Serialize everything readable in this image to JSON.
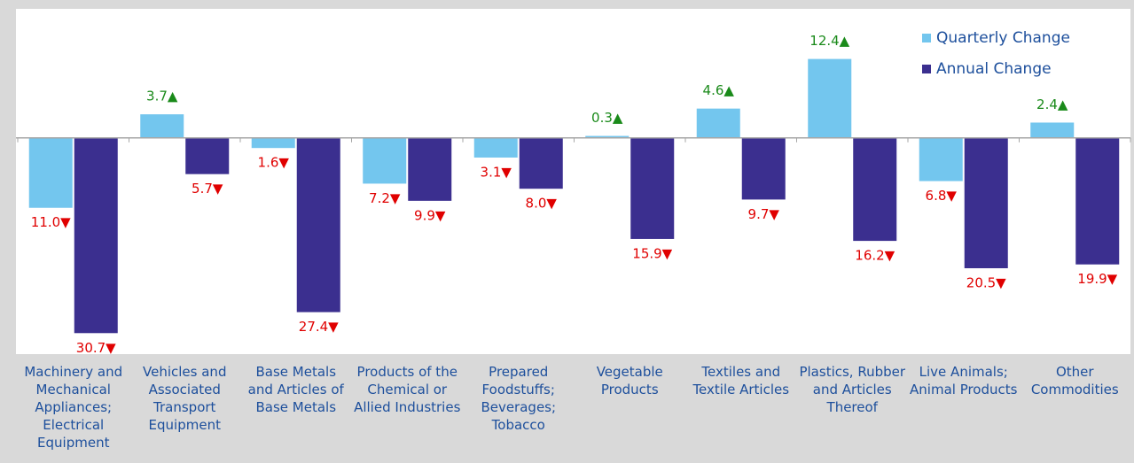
{
  "chart_data": {
    "type": "bar",
    "categories": [
      "Machinery and Mechanical Appliances; Electrical Equipment",
      "Vehicles and Associated Transport Equipment",
      "Base Metals and Articles of Base Metals",
      "Products of the Chemical or Allied Industries",
      "Prepared Foodstuffs; Beverages; Tobacco",
      "Vegetable Products",
      "Textiles and Textile Articles",
      "Plastics, Rubber and Articles Thereof",
      "Live Animals; Animal Products",
      "Other Commodities"
    ],
    "series": [
      {
        "name": "Quarterly Change",
        "color": "#73c6ee",
        "values": [
          -11.0,
          3.7,
          -1.6,
          -7.2,
          -3.1,
          0.3,
          4.6,
          12.4,
          -6.8,
          2.4
        ],
        "value_labels": [
          "11.0▼",
          "3.7▲",
          "1.6▼",
          "7.2▼",
          "3.1▼",
          "0.3▲",
          "4.6▲",
          "12.4▲",
          "6.8▼",
          "2.4▲"
        ]
      },
      {
        "name": "Annual Change",
        "color": "#3b2f8f",
        "values": [
          -30.7,
          -5.7,
          -27.4,
          -9.9,
          -8.0,
          -15.9,
          -9.7,
          -16.2,
          -20.5,
          -19.9
        ],
        "value_labels": [
          "30.7▼",
          "5.7▼",
          "27.4▼",
          "9.9▼",
          "8.0▼",
          "15.9▼",
          "9.7▼",
          "16.2▼",
          "20.5▼",
          "19.9▼"
        ]
      }
    ],
    "positive_label_color": "#1a8a1a",
    "negative_label_color": "#e00000",
    "ylim": [
      -34,
      20
    ],
    "legend": "top-right"
  }
}
